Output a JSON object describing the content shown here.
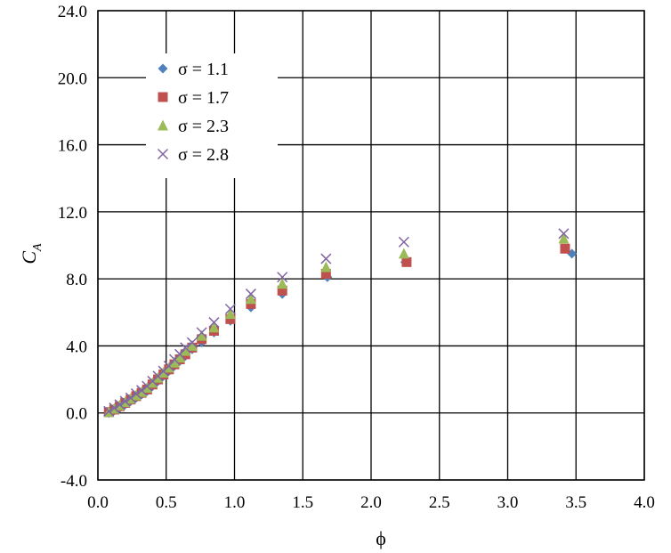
{
  "chart_data": {
    "type": "scatter",
    "title": "",
    "xlabel": "ϕ",
    "ylabel_main": "C",
    "ylabel_sub": "A",
    "xlim": [
      0.0,
      4.0
    ],
    "ylim": [
      -4.0,
      24.0
    ],
    "xticks": [
      0.0,
      0.5,
      1.0,
      1.5,
      2.0,
      2.5,
      3.0,
      3.5,
      4.0
    ],
    "yticks": [
      -4.0,
      0.0,
      4.0,
      8.0,
      12.0,
      16.0,
      20.0,
      24.0
    ],
    "xtick_labels": [
      "0.0",
      "0.5",
      "1.0",
      "1.5",
      "2.0",
      "2.5",
      "3.0",
      "3.5",
      "4.0"
    ],
    "ytick_labels": [
      "-4.0",
      "0.0",
      "4.0",
      "8.0",
      "12.0",
      "16.0",
      "20.0",
      "24.0"
    ],
    "grid": true,
    "legend_position": "top-left",
    "series": [
      {
        "name": "σ = 1.1",
        "marker": "diamond",
        "color": "#4F81BD",
        "points": [
          [
            0.08,
            0.0
          ],
          [
            0.12,
            0.15
          ],
          [
            0.16,
            0.3
          ],
          [
            0.2,
            0.5
          ],
          [
            0.24,
            0.7
          ],
          [
            0.28,
            0.9
          ],
          [
            0.32,
            1.1
          ],
          [
            0.36,
            1.3
          ],
          [
            0.4,
            1.6
          ],
          [
            0.44,
            1.9
          ],
          [
            0.48,
            2.2
          ],
          [
            0.52,
            2.5
          ],
          [
            0.56,
            2.8
          ],
          [
            0.6,
            3.1
          ],
          [
            0.64,
            3.4
          ],
          [
            0.69,
            3.8
          ],
          [
            0.76,
            4.2
          ],
          [
            0.85,
            4.8
          ],
          [
            0.97,
            5.5
          ],
          [
            1.12,
            6.3
          ],
          [
            1.35,
            7.1
          ],
          [
            1.68,
            8.1
          ],
          [
            2.25,
            9.0
          ],
          [
            3.47,
            9.5
          ]
        ]
      },
      {
        "name": "σ = 1.7",
        "marker": "square",
        "color": "#C0504D",
        "points": [
          [
            0.08,
            0.05
          ],
          [
            0.12,
            0.2
          ],
          [
            0.16,
            0.4
          ],
          [
            0.2,
            0.6
          ],
          [
            0.24,
            0.8
          ],
          [
            0.28,
            1.0
          ],
          [
            0.32,
            1.2
          ],
          [
            0.36,
            1.4
          ],
          [
            0.4,
            1.7
          ],
          [
            0.44,
            2.0
          ],
          [
            0.48,
            2.3
          ],
          [
            0.52,
            2.6
          ],
          [
            0.56,
            2.9
          ],
          [
            0.6,
            3.2
          ],
          [
            0.64,
            3.5
          ],
          [
            0.69,
            3.9
          ],
          [
            0.76,
            4.4
          ],
          [
            0.85,
            4.9
          ],
          [
            0.97,
            5.6
          ],
          [
            1.12,
            6.5
          ],
          [
            1.35,
            7.3
          ],
          [
            1.67,
            8.3
          ],
          [
            2.26,
            9.0
          ],
          [
            3.42,
            9.8
          ]
        ]
      },
      {
        "name": "σ = 2.3",
        "marker": "triangle",
        "color": "#9BBB59",
        "points": [
          [
            0.08,
            0.05
          ],
          [
            0.12,
            0.25
          ],
          [
            0.16,
            0.45
          ],
          [
            0.2,
            0.65
          ],
          [
            0.24,
            0.85
          ],
          [
            0.28,
            1.05
          ],
          [
            0.32,
            1.25
          ],
          [
            0.36,
            1.5
          ],
          [
            0.4,
            1.8
          ],
          [
            0.44,
            2.1
          ],
          [
            0.48,
            2.4
          ],
          [
            0.52,
            2.7
          ],
          [
            0.56,
            3.0
          ],
          [
            0.6,
            3.3
          ],
          [
            0.64,
            3.7
          ],
          [
            0.69,
            4.0
          ],
          [
            0.76,
            4.6
          ],
          [
            0.85,
            5.1
          ],
          [
            0.97,
            5.9
          ],
          [
            1.12,
            6.8
          ],
          [
            1.35,
            7.7
          ],
          [
            1.67,
            8.7
          ],
          [
            2.24,
            9.5
          ],
          [
            3.41,
            10.4
          ]
        ]
      },
      {
        "name": "σ = 2.8",
        "marker": "x",
        "color": "#8064A2",
        "points": [
          [
            0.08,
            0.1
          ],
          [
            0.12,
            0.3
          ],
          [
            0.16,
            0.5
          ],
          [
            0.2,
            0.7
          ],
          [
            0.24,
            0.9
          ],
          [
            0.28,
            1.15
          ],
          [
            0.32,
            1.35
          ],
          [
            0.36,
            1.6
          ],
          [
            0.4,
            1.9
          ],
          [
            0.44,
            2.2
          ],
          [
            0.48,
            2.5
          ],
          [
            0.52,
            2.8
          ],
          [
            0.56,
            3.2
          ],
          [
            0.6,
            3.5
          ],
          [
            0.64,
            3.9
          ],
          [
            0.69,
            4.2
          ],
          [
            0.76,
            4.8
          ],
          [
            0.85,
            5.4
          ],
          [
            0.97,
            6.2
          ],
          [
            1.12,
            7.1
          ],
          [
            1.35,
            8.1
          ],
          [
            1.67,
            9.2
          ],
          [
            2.24,
            10.2
          ],
          [
            3.41,
            10.7
          ]
        ]
      }
    ]
  }
}
